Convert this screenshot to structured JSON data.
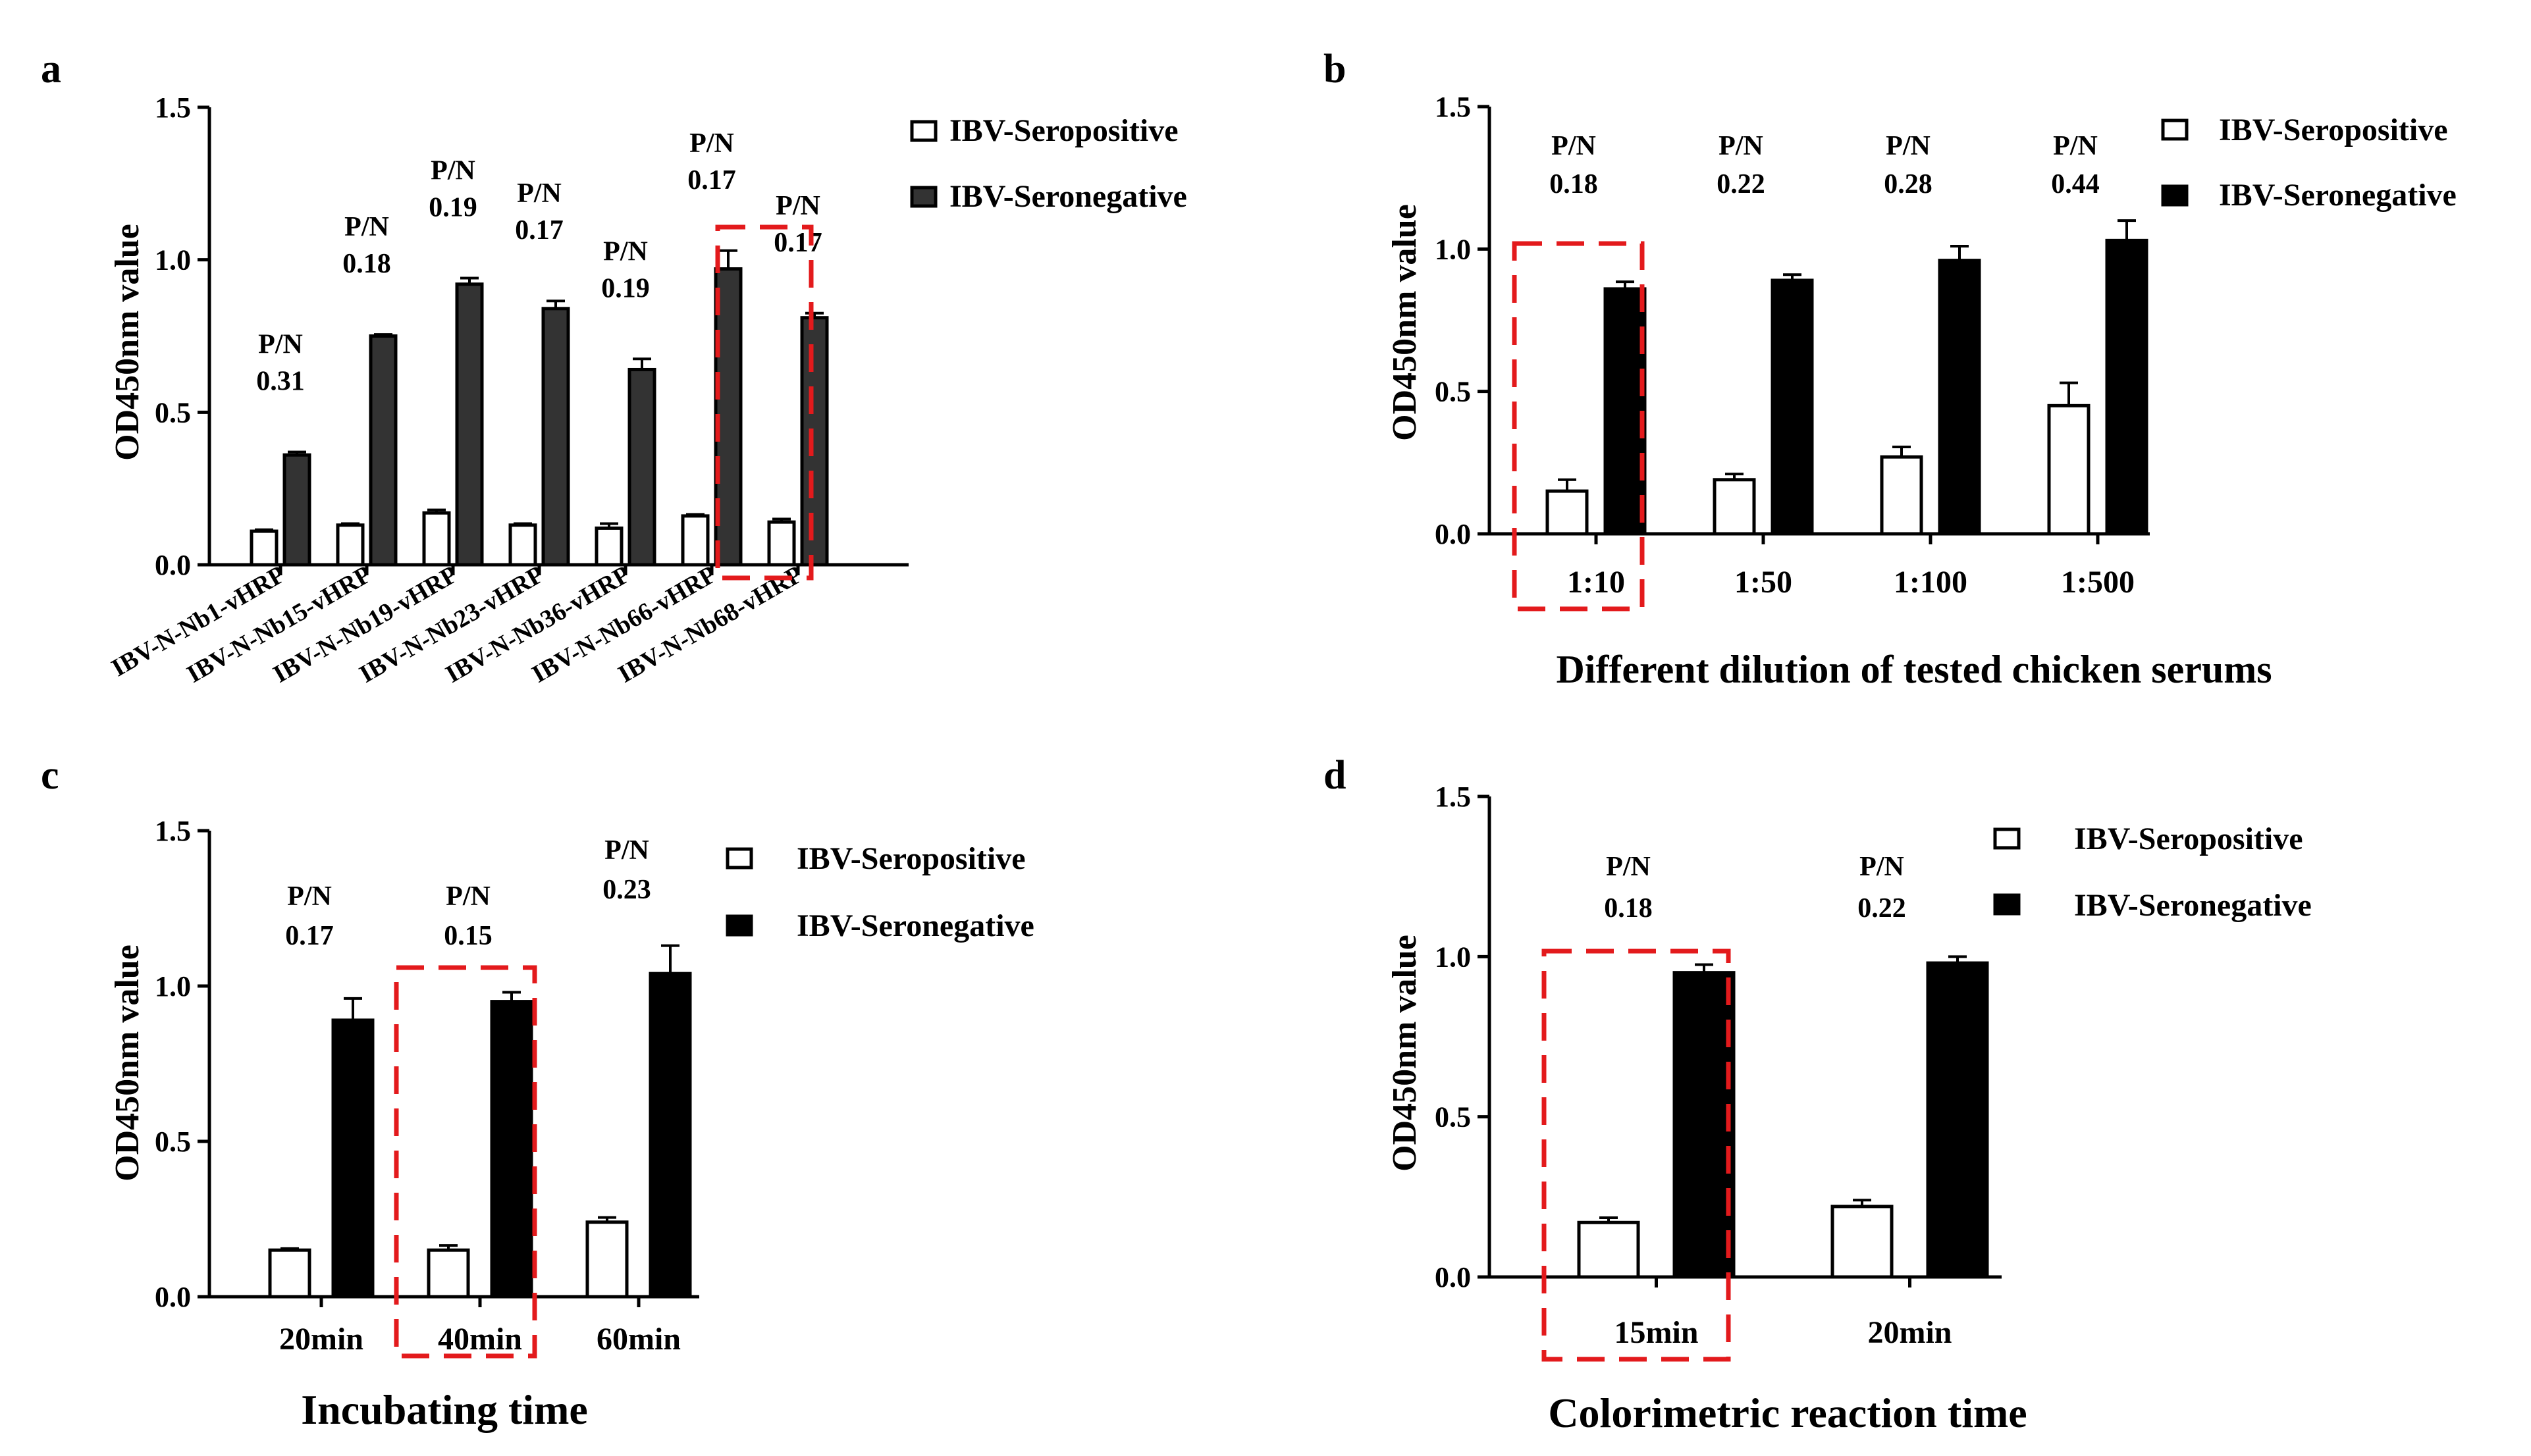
{
  "legend": {
    "positive_label": "IBV-Seropositive",
    "negative_label": "IBV-Seronegative"
  },
  "colors": {
    "positive_fill": "#ffffff",
    "negative_fill_a": "#333333",
    "negative_fill": "#000000",
    "highlight": "#e31a1c"
  },
  "chart_data": [
    {
      "panel_label": "a",
      "type": "bar",
      "ylabel": "OD450nm value",
      "xlabel": "",
      "ylim": [
        0,
        1.5
      ],
      "yticks": [
        "0.0",
        "0.5",
        "1.0",
        "1.5"
      ],
      "categories": [
        "IBV-N-Nb1-vHRP",
        "IBV-N-Nb15-vHRP",
        "IBV-N-Nb19-vHRP",
        "IBV-N-Nb23-vHRP",
        "IBV-N-Nb36-vHRP",
        "IBV-N-Nb66-vHRP",
        "IBV-N-Nb68-vHRP"
      ],
      "series": [
        {
          "name": "IBV-Seropositive",
          "values": [
            0.11,
            0.13,
            0.17,
            0.13,
            0.12,
            0.16,
            0.14
          ],
          "errors": [
            0.005,
            0.005,
            0.01,
            0.005,
            0.015,
            0.005,
            0.01
          ]
        },
        {
          "name": "IBV-Seronegative",
          "values": [
            0.36,
            0.75,
            0.92,
            0.84,
            0.64,
            0.97,
            0.81
          ],
          "errors": [
            0.01,
            0.005,
            0.02,
            0.025,
            0.035,
            0.06,
            0.015
          ]
        }
      ],
      "pn_title": "P/N",
      "pn_values": [
        "0.31",
        "0.18",
        "0.19",
        "0.17",
        "0.19",
        "0.17",
        "0.17"
      ],
      "highlight_index": 5
    },
    {
      "panel_label": "b",
      "type": "bar",
      "ylabel": "OD450nm value",
      "xlabel": "Different dilution of tested chicken serums",
      "ylim": [
        0,
        1.5
      ],
      "yticks": [
        "0.0",
        "0.5",
        "1.0",
        "1.5"
      ],
      "categories": [
        "1:10",
        "1:50",
        "1:100",
        "1:500"
      ],
      "series": [
        {
          "name": "IBV-Seropositive",
          "values": [
            0.15,
            0.19,
            0.27,
            0.45
          ],
          "errors": [
            0.04,
            0.02,
            0.035,
            0.08
          ]
        },
        {
          "name": "IBV-Seronegative",
          "values": [
            0.86,
            0.89,
            0.96,
            1.03
          ],
          "errors": [
            0.025,
            0.02,
            0.05,
            0.07
          ]
        }
      ],
      "pn_title": "P/N",
      "pn_values": [
        "0.18",
        "0.22",
        "0.28",
        "0.44"
      ],
      "highlight_index": 0
    },
    {
      "panel_label": "c",
      "type": "bar",
      "ylabel": "OD450nm value",
      "xlabel": "Incubating time",
      "ylim": [
        0,
        1.5
      ],
      "yticks": [
        "0.0",
        "0.5",
        "1.0",
        "1.5"
      ],
      "categories": [
        "20min",
        "40min",
        "60min"
      ],
      "series": [
        {
          "name": "IBV-Seropositive",
          "values": [
            0.15,
            0.15,
            0.24
          ],
          "errors": [
            0.005,
            0.015,
            0.015
          ]
        },
        {
          "name": "IBV-Seronegative",
          "values": [
            0.89,
            0.95,
            1.04
          ],
          "errors": [
            0.07,
            0.03,
            0.09
          ]
        }
      ],
      "pn_title": "P/N",
      "pn_values": [
        "0.17",
        "0.15",
        "0.23"
      ],
      "highlight_index": 1
    },
    {
      "panel_label": "d",
      "type": "bar",
      "ylabel": "OD450nm value",
      "xlabel": "Colorimetric reaction time",
      "ylim": [
        0,
        1.5
      ],
      "yticks": [
        "0.0",
        "0.5",
        "1.0",
        "1.5"
      ],
      "categories": [
        "15min",
        "20min"
      ],
      "series": [
        {
          "name": "IBV-Seropositive",
          "values": [
            0.17,
            0.22
          ],
          "errors": [
            0.015,
            0.02
          ]
        },
        {
          "name": "IBV-Seronegative",
          "values": [
            0.95,
            0.98
          ],
          "errors": [
            0.025,
            0.02
          ]
        }
      ],
      "pn_title": "P/N",
      "pn_values": [
        "0.18",
        "0.22"
      ],
      "highlight_index": 0
    }
  ]
}
